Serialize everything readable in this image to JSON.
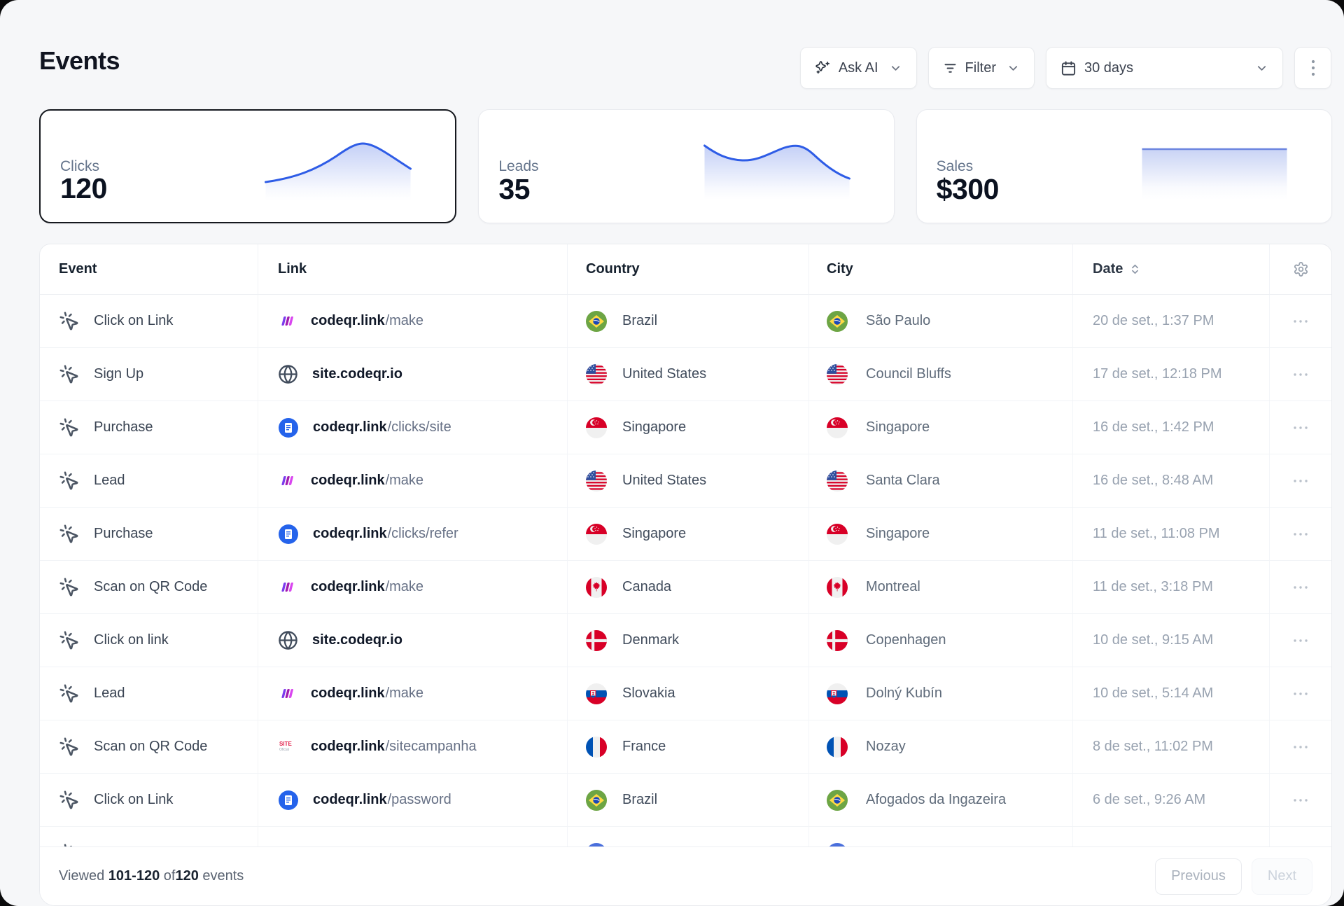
{
  "page": {
    "title": "Events",
    "background": "#f6f7f9",
    "accent_blue": "#2e5ce6"
  },
  "toolbar": {
    "ask_ai": {
      "label": "Ask AI",
      "icon": "sparkles-icon"
    },
    "filter": {
      "label": "Filter",
      "icon": "filter-lines-icon"
    },
    "date_range": {
      "label": "30 days",
      "icon": "calendar-icon"
    },
    "more": {
      "icon": "kebab-menu-icon"
    }
  },
  "stats": [
    {
      "label": "Clicks",
      "value": "120",
      "selected": true,
      "trend": "rise-to-peak-then-dip"
    },
    {
      "label": "Leads",
      "value": "35",
      "selected": false,
      "trend": "high-dip-bump-steep-fall"
    },
    {
      "label": "Sales",
      "value": "$300",
      "selected": false,
      "trend": "flat"
    }
  ],
  "table": {
    "columns": [
      "Event",
      "Link",
      "Country",
      "City",
      "Date"
    ],
    "sorted_column": "Date",
    "header_icons": [
      "sort-icon",
      "gear-icon"
    ],
    "rows": [
      {
        "event": "Click on Link",
        "link_icon": "make",
        "link_domain": "codeqr.link",
        "link_path": "/make",
        "country_flag": "br",
        "country": "Brazil",
        "city_flag": "br",
        "city": "São Paulo",
        "date": "20 de set., 1:37 PM"
      },
      {
        "event": "Sign Up",
        "link_icon": "globe",
        "link_domain": "site.codeqr.io",
        "link_path": "",
        "country_flag": "us",
        "country": "United States",
        "city_flag": "us",
        "city": "Council Bluffs",
        "date": "17 de set., 12:18 PM"
      },
      {
        "event": "Purchase",
        "link_icon": "docs",
        "link_domain": "codeqr.link",
        "link_path": "/clicks/site",
        "country_flag": "sg",
        "country": "Singapore",
        "city_flag": "sg",
        "city": "Singapore",
        "date": "16 de set., 1:42 PM"
      },
      {
        "event": "Lead",
        "link_icon": "make",
        "link_domain": "codeqr.link",
        "link_path": "/make",
        "country_flag": "us",
        "country": "United States",
        "city_flag": "us",
        "city": "Santa Clara",
        "date": "16 de set., 8:48 AM"
      },
      {
        "event": "Purchase",
        "link_icon": "docs",
        "link_domain": "codeqr.link",
        "link_path": "/clicks/refer",
        "country_flag": "sg",
        "country": "Singapore",
        "city_flag": "sg",
        "city": "Singapore",
        "date": "11 de set., 11:08 PM"
      },
      {
        "event": "Scan on QR Code",
        "link_icon": "make",
        "link_domain": "codeqr.link",
        "link_path": "/make",
        "country_flag": "ca",
        "country": "Canada",
        "city_flag": "ca",
        "city": "Montreal",
        "date": "11 de set., 3:18 PM"
      },
      {
        "event": "Click on link",
        "link_icon": "globe",
        "link_domain": "site.codeqr.io",
        "link_path": "",
        "country_flag": "dk",
        "country": "Denmark",
        "city_flag": "dk",
        "city": "Copenhagen",
        "date": "10 de set., 9:15 AM"
      },
      {
        "event": "Lead",
        "link_icon": "make",
        "link_domain": "codeqr.link",
        "link_path": "/make",
        "country_flag": "sk",
        "country": "Slovakia",
        "city_flag": "sk",
        "city": "Dolný Kubín",
        "date": "10 de set., 5:14 AM"
      },
      {
        "event": "Scan on QR Code",
        "link_icon": "sitefav",
        "link_domain": "codeqr.link",
        "link_path": "/sitecampanha",
        "country_flag": "fr",
        "country": "France",
        "city_flag": "fr",
        "city": "Nozay",
        "date": "8 de set., 11:02 PM"
      },
      {
        "event": "Click on Link",
        "link_icon": "docs",
        "link_domain": "codeqr.link",
        "link_path": "/password",
        "country_flag": "br",
        "country": "Brazil",
        "city_flag": "br",
        "city": "Afogados da Ingazeira",
        "date": "6 de set., 9:26 AM"
      }
    ],
    "partial_row": {
      "country_flag": "blue",
      "city_flag": "blue"
    }
  },
  "footer": {
    "viewed_prefix": "Viewed ",
    "range": "101-120",
    "of": " of",
    "total": "120",
    "suffix": " events",
    "previous_label": "Previous",
    "next_label": "Next"
  }
}
